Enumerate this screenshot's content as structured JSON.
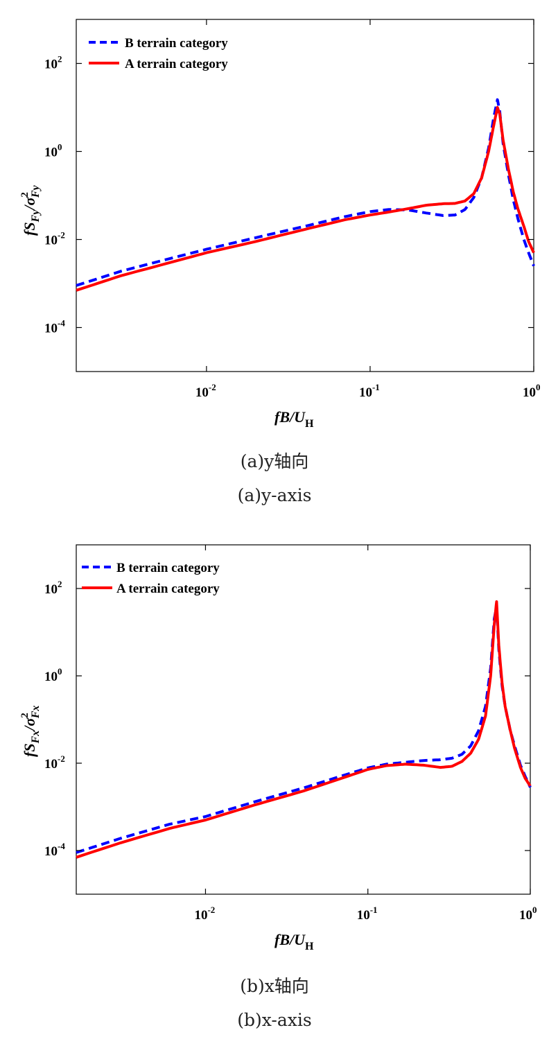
{
  "colors": {
    "series_B": "#0000ff",
    "series_A": "#ff0000",
    "axis": "#000000"
  },
  "captions": [
    {
      "line1": "(a)y轴向",
      "line2": "(a)y-axis"
    },
    {
      "line1": "(b)x轴向",
      "line2": "(b)x-axis"
    }
  ],
  "chart_data": [
    {
      "type": "line",
      "xscale": "log",
      "yscale": "log",
      "xlim": [
        0.0016,
        1.0
      ],
      "ylim": [
        1e-05,
        1000
      ],
      "xticks": [
        0.01,
        0.1,
        1
      ],
      "xtick_labels": [
        {
          "base": "10",
          "exp": "-2"
        },
        {
          "base": "10",
          "exp": "-1"
        },
        {
          "base": "10",
          "exp": "0"
        }
      ],
      "yticks": [
        0.0001,
        0.01,
        1,
        100
      ],
      "ytick_labels": [
        {
          "base": "10",
          "exp": "-4"
        },
        {
          "base": "10",
          "exp": "-2"
        },
        {
          "base": "10",
          "exp": "0"
        },
        {
          "base": "10",
          "exp": "2"
        }
      ],
      "xlabel": {
        "main": "fB/U",
        "sub": "H"
      },
      "ylabel": {
        "f": "fS",
        "sub": "Fy",
        "slash": "/σ",
        "sup": "2",
        "sub2": "Fy"
      },
      "legend_position": "top-left",
      "series": [
        {
          "name": "B terrain category",
          "style": "dashed",
          "x": [
            0.0016,
            0.003,
            0.006,
            0.01,
            0.02,
            0.04,
            0.07,
            0.1,
            0.13,
            0.17,
            0.22,
            0.28,
            0.33,
            0.38,
            0.43,
            0.48,
            0.53,
            0.57,
            0.6,
            0.62,
            0.65,
            0.7,
            0.75,
            0.8,
            0.87,
            0.93,
            1.0
          ],
          "y": [
            0.0009,
            0.0019,
            0.0037,
            0.006,
            0.011,
            0.02,
            0.033,
            0.043,
            0.048,
            0.047,
            0.04,
            0.035,
            0.036,
            0.048,
            0.09,
            0.25,
            1.2,
            6.0,
            15.0,
            8.0,
            1.5,
            0.3,
            0.08,
            0.03,
            0.01,
            0.005,
            0.0025
          ]
        },
        {
          "name": "A terrain category",
          "style": "solid",
          "x": [
            0.0016,
            0.003,
            0.006,
            0.01,
            0.02,
            0.04,
            0.07,
            0.1,
            0.13,
            0.17,
            0.22,
            0.28,
            0.33,
            0.38,
            0.43,
            0.48,
            0.53,
            0.57,
            0.6,
            0.62,
            0.65,
            0.7,
            0.75,
            0.8,
            0.87,
            0.93,
            1.0
          ],
          "y": [
            0.0007,
            0.0015,
            0.003,
            0.005,
            0.009,
            0.017,
            0.028,
            0.036,
            0.042,
            0.05,
            0.06,
            0.065,
            0.066,
            0.075,
            0.11,
            0.25,
            1.0,
            4.0,
            10.0,
            7.0,
            1.8,
            0.4,
            0.12,
            0.05,
            0.02,
            0.009,
            0.005
          ]
        }
      ]
    },
    {
      "type": "line",
      "xscale": "log",
      "yscale": "log",
      "xlim": [
        0.0016,
        1.0
      ],
      "ylim": [
        1e-05,
        1000
      ],
      "xticks": [
        0.01,
        0.1,
        1
      ],
      "xtick_labels": [
        {
          "base": "10",
          "exp": "-2"
        },
        {
          "base": "10",
          "exp": "-1"
        },
        {
          "base": "10",
          "exp": "0"
        }
      ],
      "yticks": [
        0.0001,
        0.01,
        1,
        100
      ],
      "ytick_labels": [
        {
          "base": "10",
          "exp": "-4"
        },
        {
          "base": "10",
          "exp": "-2"
        },
        {
          "base": "10",
          "exp": "0"
        },
        {
          "base": "10",
          "exp": "2"
        }
      ],
      "xlabel": {
        "main": "fB/U",
        "sub": "H"
      },
      "ylabel": {
        "f": "fS",
        "sub": "Fx",
        "slash": "/σ",
        "sup": "2",
        "sub2": "Fx"
      },
      "legend_position": "top-left",
      "series": [
        {
          "name": "B terrain category",
          "style": "dashed",
          "x": [
            0.0016,
            0.003,
            0.006,
            0.01,
            0.02,
            0.04,
            0.07,
            0.1,
            0.13,
            0.17,
            0.22,
            0.28,
            0.33,
            0.38,
            0.43,
            0.48,
            0.53,
            0.57,
            0.6,
            0.62,
            0.64,
            0.67,
            0.7,
            0.75,
            0.8,
            0.87,
            0.93,
            1.0
          ],
          "y": [
            9e-05,
            0.00019,
            0.0004,
            0.0006,
            0.0013,
            0.0027,
            0.0052,
            0.0078,
            0.0095,
            0.0105,
            0.0115,
            0.012,
            0.013,
            0.016,
            0.025,
            0.055,
            0.2,
            1.5,
            20.0,
            40.0,
            4.0,
            0.6,
            0.2,
            0.06,
            0.025,
            0.009,
            0.005,
            0.0028
          ]
        },
        {
          "name": "A terrain category",
          "style": "solid",
          "x": [
            0.0016,
            0.003,
            0.006,
            0.01,
            0.02,
            0.04,
            0.07,
            0.1,
            0.13,
            0.17,
            0.22,
            0.28,
            0.33,
            0.38,
            0.43,
            0.48,
            0.53,
            0.57,
            0.6,
            0.62,
            0.64,
            0.67,
            0.7,
            0.75,
            0.8,
            0.87,
            0.93,
            1.0
          ],
          "y": [
            7e-05,
            0.00015,
            0.00032,
            0.0005,
            0.0011,
            0.0023,
            0.0046,
            0.0072,
            0.0088,
            0.0095,
            0.009,
            0.008,
            0.0085,
            0.011,
            0.017,
            0.035,
            0.12,
            1.0,
            15.0,
            50.0,
            5.0,
            0.7,
            0.2,
            0.06,
            0.022,
            0.008,
            0.0045,
            0.003
          ]
        }
      ]
    }
  ]
}
